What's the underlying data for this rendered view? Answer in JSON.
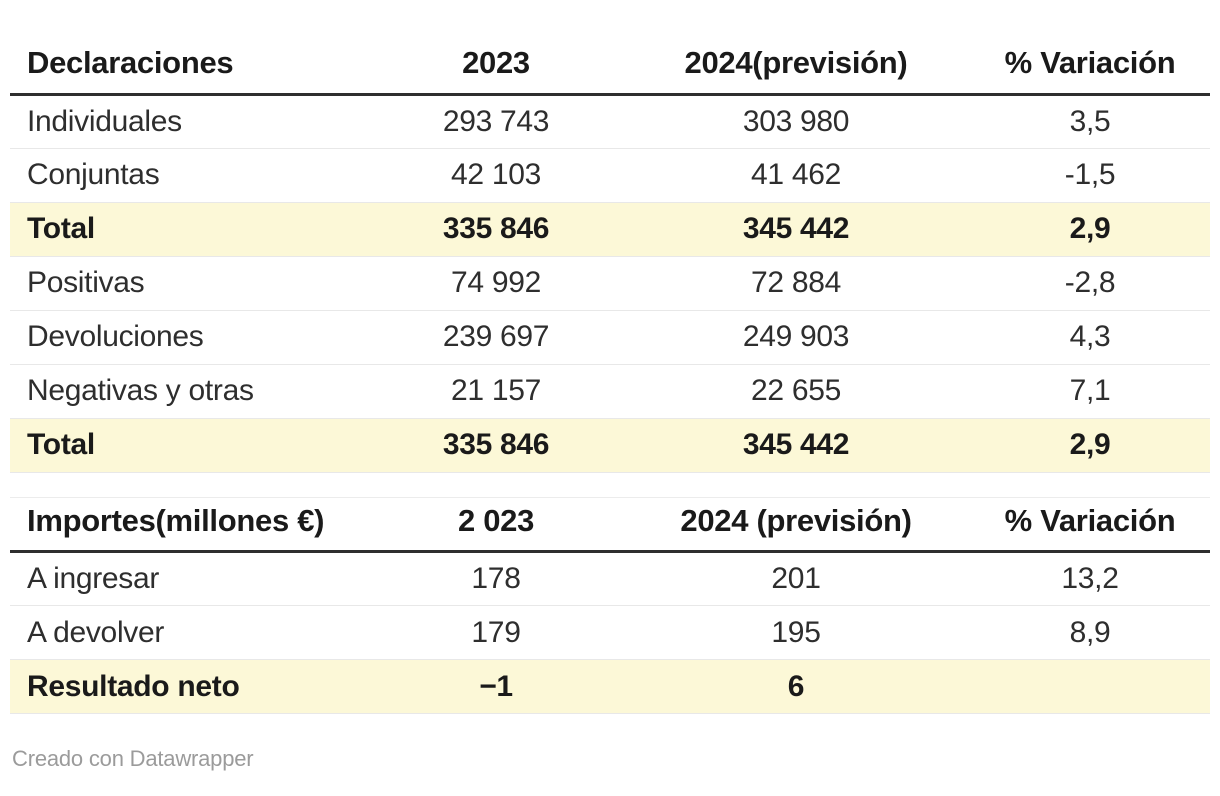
{
  "chart_data": [
    {
      "type": "table",
      "columns": [
        "Declaraciones",
        "2023",
        "2024(previsión)",
        "% Variación"
      ],
      "rows": [
        [
          "Individuales",
          "293 743",
          "303 980",
          "3,5"
        ],
        [
          "Conjuntas",
          "42 103",
          "41 462",
          "-1,5"
        ],
        [
          "Total",
          "335 846",
          "345 442",
          "2,9"
        ],
        [
          "Positivas",
          "74 992",
          "72 884",
          "-2,8"
        ],
        [
          "Devoluciones",
          "239 697",
          "249 903",
          "4,3"
        ],
        [
          "Negativas y otras",
          "21 157",
          "22 655",
          "7,1"
        ],
        [
          "Total",
          "335 846",
          "345 442",
          "2,9"
        ]
      ],
      "highlight_rows": [
        2,
        6
      ],
      "layout_hints": {
        "first_column_align": "left",
        "numeric_columns_align": "center",
        "highlight_style": "bold text on pale yellow background"
      }
    },
    {
      "type": "table",
      "columns": [
        "Importes(millones €)",
        "2 023",
        "2024 (previsión)",
        "% Variación"
      ],
      "rows": [
        [
          "A ingresar",
          "178",
          "201",
          "13,2"
        ],
        [
          "A devolver",
          "179",
          "195",
          "8,9"
        ],
        [
          "Resultado neto",
          "−1",
          "6",
          ""
        ]
      ],
      "highlight_rows": [
        2
      ],
      "layout_hints": {
        "first_column_align": "left",
        "numeric_columns_align": "center",
        "highlight_style": "bold text on pale yellow background"
      }
    }
  ],
  "footer": {
    "credit": "Creado con Datawrapper"
  },
  "colors": {
    "highlight_row_bg": "#fcf8d7",
    "header_rule": "#2f2f2f",
    "row_separator": "#e8e8e8",
    "body_text": "#2e2e2e",
    "emphasis_text": "#1a1a1a",
    "footer_text": "#9b9b9b",
    "background": "#ffffff"
  }
}
